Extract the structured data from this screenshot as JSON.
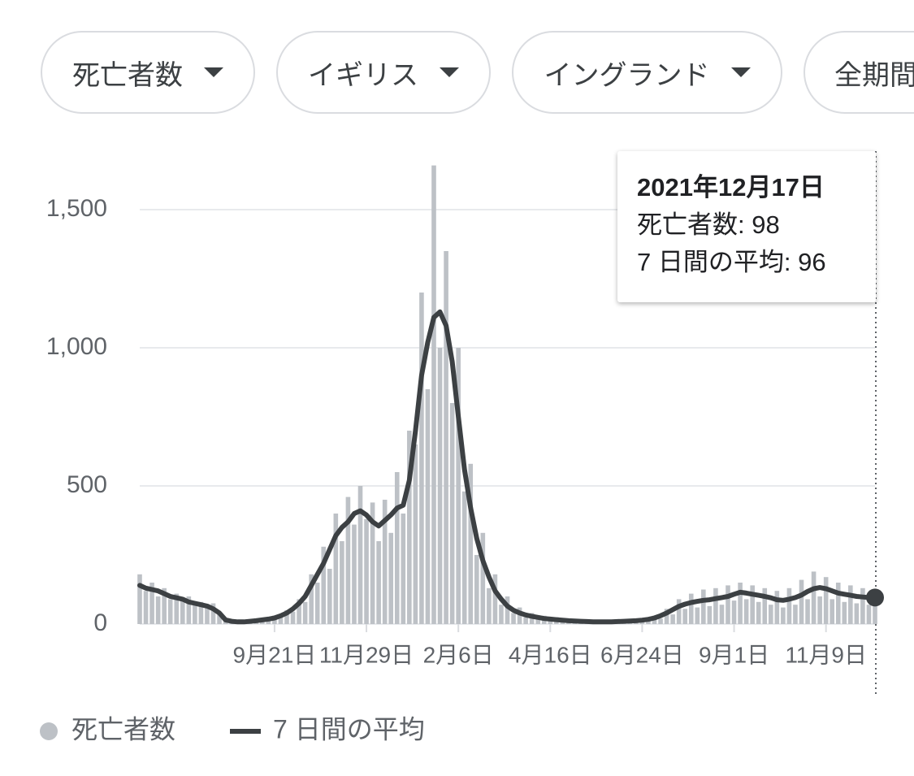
{
  "filters": [
    "死亡者数",
    "イギリス",
    "イングランド",
    "全期間"
  ],
  "tooltip": {
    "date": "2021年12月17日",
    "lines": [
      "死亡者数: 98",
      "7 日間の平均: 96"
    ]
  },
  "chart_data": {
    "type": "bar-line",
    "categories": [
      null,
      null,
      null,
      null,
      null,
      null,
      null,
      null,
      null,
      null,
      null,
      null,
      null,
      null,
      null,
      null,
      null,
      null,
      null,
      null,
      null,
      null,
      "9月21日",
      null,
      null,
      null,
      null,
      null,
      null,
      null,
      null,
      null,
      null,
      null,
      null,
      null,
      null,
      "11月29日",
      null,
      null,
      null,
      null,
      null,
      null,
      null,
      null,
      null,
      null,
      null,
      null,
      null,
      null,
      "2月6日",
      null,
      null,
      null,
      null,
      null,
      null,
      null,
      null,
      null,
      null,
      null,
      null,
      null,
      null,
      "4月16日",
      null,
      null,
      null,
      null,
      null,
      null,
      null,
      null,
      null,
      null,
      null,
      null,
      null,
      null,
      "6月24日",
      null,
      null,
      null,
      null,
      null,
      null,
      null,
      null,
      null,
      null,
      null,
      null,
      null,
      null,
      "9月1日",
      null,
      null,
      null,
      null,
      null,
      null,
      null,
      null,
      null,
      null,
      null,
      null,
      null,
      null,
      "11月9日",
      null,
      null,
      null,
      null,
      null,
      null,
      null,
      null
    ],
    "series": [
      {
        "name": "死亡者数",
        "color": "#bdc1c6",
        "values": [
          180,
          120,
          150,
          100,
          130,
          90,
          110,
          85,
          100,
          70,
          80,
          60,
          75,
          40,
          12,
          8,
          10,
          6,
          12,
          9,
          20,
          14,
          30,
          25,
          50,
          45,
          90,
          80,
          180,
          150,
          280,
          200,
          400,
          300,
          460,
          360,
          500,
          380,
          440,
          300,
          450,
          330,
          550,
          400,
          700,
          650,
          1200,
          850,
          1660,
          1000,
          1350,
          800,
          1000,
          480,
          580,
          250,
          330,
          130,
          180,
          70,
          100,
          40,
          60,
          25,
          40,
          18,
          30,
          12,
          25,
          10,
          18,
          8,
          15,
          6,
          12,
          5,
          12,
          6,
          14,
          7,
          16,
          9,
          20,
          12,
          30,
          20,
          55,
          35,
          90,
          55,
          110,
          60,
          125,
          65,
          130,
          70,
          140,
          85,
          150,
          90,
          140,
          80,
          130,
          70,
          120,
          60,
          130,
          70,
          160,
          90,
          190,
          100,
          170,
          90,
          150,
          80,
          140,
          75,
          130,
          70,
          98
        ]
      },
      {
        "name": "7 日間の平均",
        "color": "#3c4043",
        "values": [
          140,
          130,
          125,
          120,
          110,
          100,
          95,
          90,
          80,
          75,
          70,
          65,
          55,
          40,
          15,
          10,
          8,
          8,
          10,
          12,
          15,
          18,
          22,
          30,
          40,
          55,
          75,
          100,
          140,
          180,
          220,
          270,
          320,
          350,
          370,
          400,
          410,
          395,
          370,
          355,
          375,
          395,
          420,
          430,
          520,
          700,
          900,
          1020,
          1110,
          1130,
          1080,
          950,
          750,
          560,
          420,
          310,
          230,
          170,
          120,
          90,
          65,
          50,
          40,
          33,
          28,
          24,
          20,
          18,
          16,
          14,
          12,
          11,
          10,
          9,
          8,
          8,
          8,
          8,
          9,
          10,
          11,
          12,
          14,
          17,
          22,
          30,
          40,
          52,
          64,
          72,
          78,
          82,
          86,
          88,
          92,
          96,
          100,
          108,
          115,
          112,
          108,
          104,
          100,
          95,
          88,
          86,
          90,
          96,
          105,
          118,
          128,
          132,
          128,
          120,
          112,
          108,
          104,
          100,
          98,
          96,
          96
        ]
      }
    ],
    "ylim": [
      0,
      1700
    ],
    "yticks": [
      0,
      500,
      {
        "value": 1000,
        "label": "1,000"
      },
      {
        "value": 1500,
        "label": "1,500"
      }
    ],
    "grid": true
  }
}
